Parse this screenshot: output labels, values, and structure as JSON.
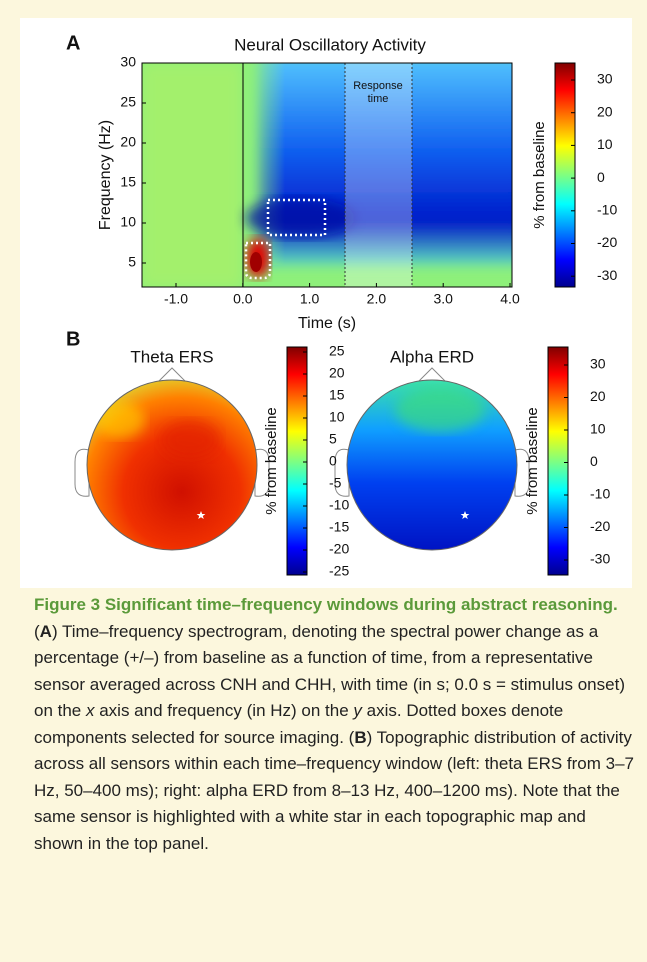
{
  "panel_a": {
    "label": "A",
    "title": "Neural Oscillatory Activity",
    "xlabel": "Time (s)",
    "ylabel": "Frequency (Hz)",
    "xticks": [
      "-1.0",
      "0.0",
      "1.0",
      "2.0",
      "3.0",
      "4.0"
    ],
    "yticks": [
      "30",
      "25",
      "20",
      "15",
      "10",
      "5"
    ],
    "annotation": [
      "Response",
      "time"
    ],
    "colorbar": {
      "label": "% from baseline",
      "ticks": [
        "30",
        "20",
        "10",
        "0",
        "-10",
        "-20",
        "-30"
      ]
    }
  },
  "panel_b": {
    "label": "B",
    "maps": [
      {
        "title": "Theta ERS",
        "colorbar": {
          "label": "% from baseline",
          "ticks": [
            "25",
            "20",
            "15",
            "10",
            "5",
            "0",
            "-5",
            "-10",
            "-15",
            "-20",
            "-25"
          ]
        }
      },
      {
        "title": "Alpha ERD",
        "colorbar": {
          "label": "% from baseline",
          "ticks": [
            "30",
            "20",
            "10",
            "0",
            "-10",
            "-20",
            "-30"
          ]
        }
      }
    ]
  },
  "caption": {
    "title": "Figure 3 Significant time–frequency windows during abstract reasoning.",
    "body": [
      "(",
      "A",
      ") Time–frequency spectrogram, denoting the spectral power change as a percentage (+/–) from baseline as a function of time, from a representative sensor averaged across CNH and CHH, with time (in s; 0.0 s = stimulus onset) on the ",
      "x",
      " axis and frequency (in Hz) on the ",
      "y",
      " axis. Dotted boxes denote components selected for source imaging. (",
      "B",
      ") Topographic distribution of activity across all sensors within each time–frequency window (left: theta ERS from 3–7 Hz, 50–400 ms); right: alpha ERD from 8–13 Hz, 400–1200 ms). Note that the same sensor is highlighted with a white star in each topographic map and shown in the top panel."
    ]
  }
}
